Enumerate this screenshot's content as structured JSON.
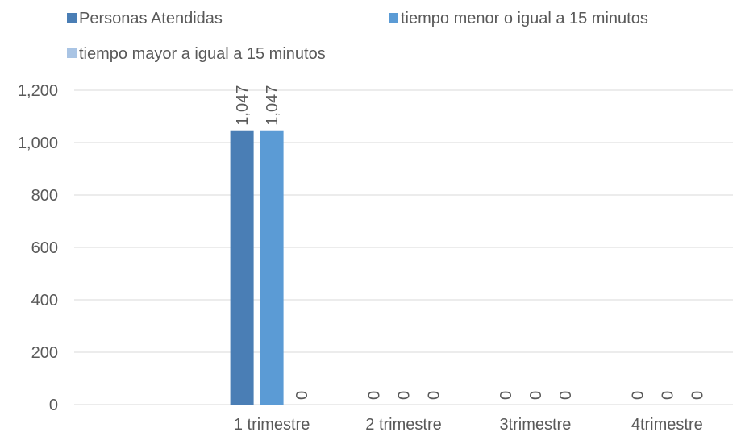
{
  "chart_data": {
    "type": "bar",
    "categories": [
      "",
      "1 trimestre",
      "2 trimestre",
      "3trimestre",
      "4trimestre"
    ],
    "series": [
      {
        "name": "Personas Atendidas",
        "values": [
          null,
          1047,
          0,
          0,
          0
        ],
        "labels": [
          "",
          "1,047",
          "0",
          "0",
          "0"
        ],
        "color": "#4a7eb5"
      },
      {
        "name": "tiempo menor o igual a 15 minutos",
        "values": [
          null,
          1047,
          0,
          0,
          0
        ],
        "labels": [
          "",
          "1,047",
          "0",
          "0",
          "0"
        ],
        "color": "#5b9bd5"
      },
      {
        "name": "tiempo mayor a igual a 15 minutos",
        "values": [
          null,
          0,
          0,
          0,
          0
        ],
        "labels": [
          "",
          "0",
          "0",
          "0",
          "0"
        ],
        "color": "#a9c4e4"
      }
    ],
    "ylim": [
      0,
      1200
    ],
    "yticks": [
      0,
      200,
      400,
      600,
      800,
      1000,
      1200
    ],
    "ytick_labels": [
      "0",
      "200",
      "400",
      "600",
      "800",
      "1,000",
      "1,200"
    ],
    "grid": true,
    "legend_position": "top",
    "data_label_orientation": "vertical"
  }
}
